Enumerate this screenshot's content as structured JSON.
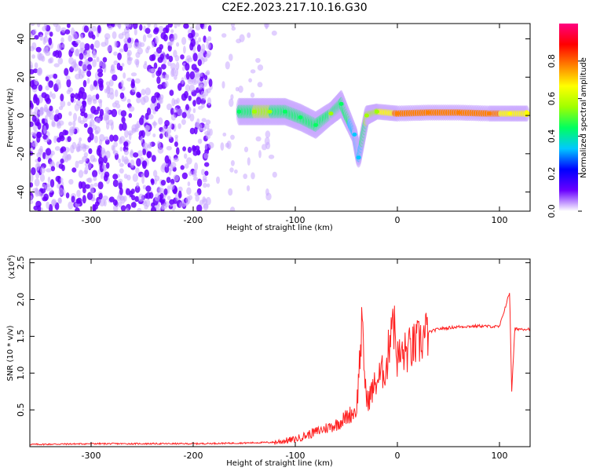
{
  "title": "C2E2.2023.217.10.16.G30",
  "chart_data": [
    {
      "type": "heatmap",
      "name": "spectrogram",
      "xlabel": "Height of straight line (km)",
      "ylabel": "Frequency (Hz)",
      "xlim": [
        -360,
        130
      ],
      "ylim": [
        -50,
        48
      ],
      "x_ticks": [
        -300,
        -200,
        -100,
        0,
        100
      ],
      "y_ticks": [
        -40,
        -20,
        0,
        20,
        40
      ],
      "colorbar": {
        "label": "Normalized spectral amplitude",
        "range": [
          0,
          1
        ],
        "ticks": [
          "0.0",
          "0.2",
          "0.4",
          "0.6",
          "0.8"
        ],
        "tick_values": [
          0.0,
          0.2,
          0.4,
          0.6,
          0.8
        ],
        "colors": [
          "#ffffff",
          "#6a00ff",
          "#0000ff",
          "#00c8ff",
          "#00ff60",
          "#a0ff00",
          "#ffff00",
          "#ff8000",
          "#ff0000",
          "#ff0080"
        ]
      },
      "noise_region_x": [
        -360,
        -120
      ],
      "noise_region_y": [
        -50,
        48
      ],
      "signal_track": [
        {
          "x": -155,
          "y": 2,
          "width": 6,
          "amp": 0.45
        },
        {
          "x": -140,
          "y": 2,
          "width": 6,
          "amp": 0.5
        },
        {
          "x": -125,
          "y": 2,
          "width": 6,
          "amp": 0.5
        },
        {
          "x": -110,
          "y": 2,
          "width": 6,
          "amp": 0.45
        },
        {
          "x": -95,
          "y": -1,
          "width": 6,
          "amp": 0.45
        },
        {
          "x": -80,
          "y": -5,
          "width": 6,
          "amp": 0.45
        },
        {
          "x": -65,
          "y": 1,
          "width": 5,
          "amp": 0.5
        },
        {
          "x": -55,
          "y": 6,
          "width": 6,
          "amp": 0.45
        },
        {
          "x": -42,
          "y": -10,
          "width": 4,
          "amp": 0.35
        },
        {
          "x": -38,
          "y": -22,
          "width": 4,
          "amp": 0.3
        },
        {
          "x": -30,
          "y": 0,
          "width": 4,
          "amp": 0.55
        },
        {
          "x": -20,
          "y": 2,
          "width": 3,
          "amp": 0.6
        },
        {
          "x": 0,
          "y": 1,
          "width": 3,
          "amp": 0.75
        },
        {
          "x": 30,
          "y": 1.5,
          "width": 3,
          "amp": 0.8
        },
        {
          "x": 60,
          "y": 1.5,
          "width": 3,
          "amp": 0.8
        },
        {
          "x": 90,
          "y": 1,
          "width": 3,
          "amp": 0.75
        },
        {
          "x": 110,
          "y": 1,
          "width": 3,
          "amp": 0.7
        },
        {
          "x": 128,
          "y": 1,
          "width": 3,
          "amp": 0.7
        }
      ]
    },
    {
      "type": "line",
      "name": "snr",
      "xlabel": "Height of straight line (km)",
      "ylabel": "SNR (10 * v/v)",
      "y_multiplier_label": "(x10",
      "y_multiplier_exp": "4",
      "xlim": [
        -360,
        130
      ],
      "ylim": [
        0,
        2.55
      ],
      "x_ticks": [
        -300,
        -200,
        -100,
        0,
        100
      ],
      "y_ticks": [
        0.5,
        1.0,
        1.5,
        2.0,
        2.5
      ],
      "y_tick_labels": [
        "0.5",
        "1.0",
        "1.5",
        "2.0",
        "2.5"
      ],
      "line_color": "#ff2020",
      "series": [
        {
          "x": [
            -360,
            -300,
            -250,
            -200,
            -150,
            -120,
            -100,
            -80,
            -60,
            -50,
            -40,
            -35,
            -30,
            -20,
            -10,
            -5,
            0,
            10,
            20,
            30,
            40,
            60,
            80,
            100,
            110,
            112,
            115,
            130
          ],
          "y": [
            0.03,
            0.04,
            0.04,
            0.04,
            0.05,
            0.06,
            0.1,
            0.2,
            0.3,
            0.4,
            0.5,
            1.6,
            0.6,
            0.9,
            1.1,
            1.9,
            1.2,
            1.3,
            1.4,
            1.55,
            1.6,
            1.63,
            1.64,
            1.63,
            2.1,
            0.75,
            1.6,
            1.6
          ]
        }
      ]
    }
  ]
}
